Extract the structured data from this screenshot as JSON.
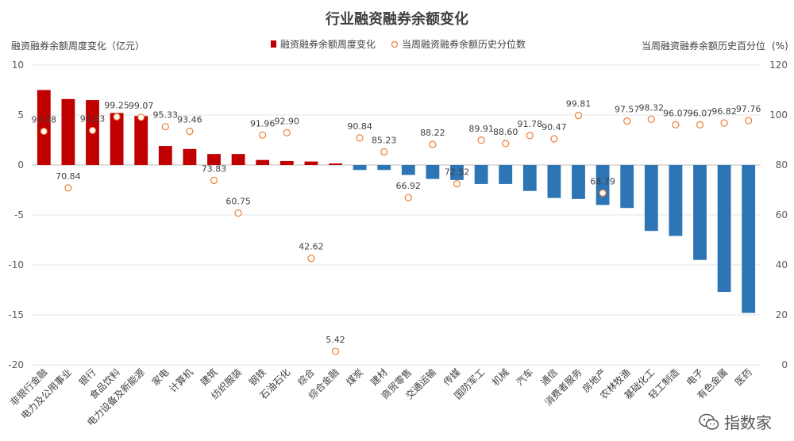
{
  "chart_data": {
    "type": "bar",
    "title": "行业融资融券余额变化",
    "ylabel_left": "融资融券余额周度变化（亿元）",
    "ylabel_right": "当周融资融券余额历史百分位",
    "ylabel_right_unit": "(%)",
    "ylim_left": [
      -20,
      10
    ],
    "yticks_left": [
      "10",
      "5",
      "0",
      "-5",
      "-10",
      "-15",
      "-20"
    ],
    "ylim_right": [
      0,
      120
    ],
    "yticks_right": [
      "120",
      "100",
      "80",
      "60",
      "40",
      "20",
      "0"
    ],
    "legend": {
      "placement": "top-center",
      "bar_label": "融资融券余额周度变化",
      "point_label": "当周融资融券余额历史分位数"
    },
    "colors": {
      "positive": "#C00000",
      "negative": "#2E75B6",
      "marker": "#ED7D31"
    },
    "categories": [
      "非银行金融",
      "电力及公用事业",
      "银行",
      "食品饮料",
      "电力设备及新能源",
      "家电",
      "计算机",
      "建筑",
      "纺织服装",
      "钢铁",
      "石油石化",
      "综合",
      "综合金融",
      "煤炭",
      "建材",
      "商贸零售",
      "交通运输",
      "传媒",
      "国防军工",
      "机械",
      "汽车",
      "通信",
      "消费者服务",
      "房地产",
      "农林牧渔",
      "基础化工",
      "轻工制造",
      "电子",
      "有色金属",
      "医药"
    ],
    "series": [
      {
        "name": "融资融券余额周度变化",
        "axis": "left",
        "values": [
          7.5,
          6.6,
          6.5,
          5.2,
          4.9,
          1.9,
          1.6,
          1.1,
          1.1,
          0.5,
          0.4,
          0.35,
          0.15,
          -0.5,
          -0.5,
          -1.0,
          -1.4,
          -1.5,
          -1.9,
          -1.9,
          -2.6,
          -3.3,
          -3.4,
          -4.0,
          -4.3,
          -6.6,
          -7.1,
          -9.5,
          -12.7,
          -14.8
        ]
      },
      {
        "name": "当周融资融券余额历史分位数",
        "axis": "right",
        "values": [
          93.48,
          70.84,
          93.83,
          99.25,
          99.07,
          95.33,
          93.46,
          73.83,
          60.75,
          91.96,
          92.9,
          42.62,
          5.42,
          90.84,
          85.23,
          66.92,
          88.22,
          72.52,
          89.91,
          88.6,
          91.78,
          90.47,
          99.81,
          68.79,
          97.57,
          98.32,
          96.07,
          96.07,
          96.82,
          97.76
        ],
        "labels": [
          "93.48",
          "70.84",
          "93.83",
          "99.25",
          "99.07",
          "95.33",
          "93.46",
          "73.83",
          "60.75",
          "91.96",
          "92.90",
          "42.62",
          "5.42",
          "90.84",
          "85.23",
          "66.92",
          "88.22",
          "72.52",
          "89.91",
          "88.60",
          "91.78",
          "90.47",
          "99.81",
          "68.79",
          "97.57",
          "98.32",
          "96.07",
          "96.07",
          "96.82",
          "97.76"
        ]
      }
    ]
  },
  "watermark": {
    "text": "指数家",
    "icon": "wechat-icon"
  }
}
